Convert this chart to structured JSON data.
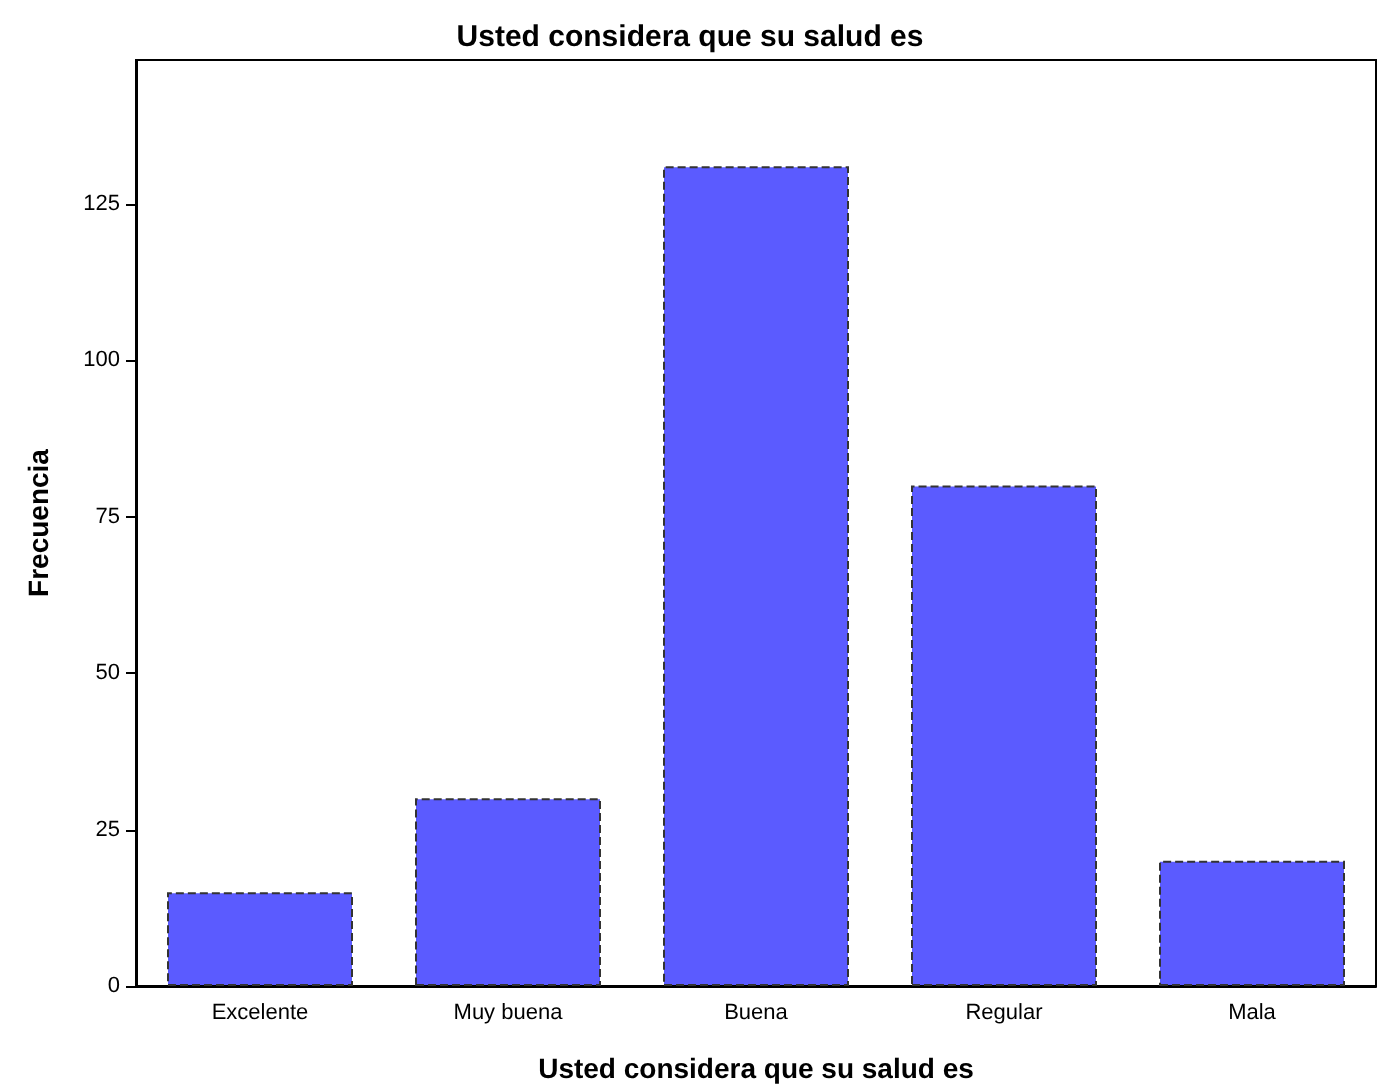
{
  "chart_data": {
    "type": "bar",
    "title": "Usted considera que su salud es",
    "xlabel": "Usted considera que su salud es",
    "ylabel": "Frecuencia",
    "categories": [
      "Excelente",
      "Muy buena",
      "Buena",
      "Regular",
      "Mala"
    ],
    "values": [
      15,
      30,
      131,
      80,
      20
    ],
    "color": "#5b5bff",
    "ylim": [
      0,
      148
    ],
    "yticks": [
      0,
      25,
      50,
      75,
      100,
      125
    ],
    "grid": false
  }
}
